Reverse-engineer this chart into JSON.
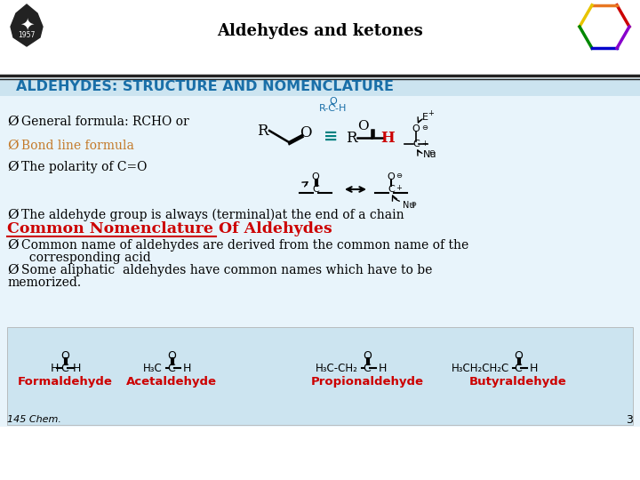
{
  "title": "Aldehydes and ketones",
  "slide_bg": "#ffffff",
  "header_title": "ALDEHYDES: STRUCTURE AND NOMENCLATURE",
  "header_color": "#1a6fa8",
  "header_bg": "#cce4f0",
  "content_bg": "#e8f4fb",
  "bullet1": "General formula: RCHO or",
  "bullet2_color": "#c47a2a",
  "bullet2": "Bond line formula",
  "bullet3": "The polarity of C=O",
  "bullet4": "The aldehyde group is always (terminal)at the end of a chain",
  "common_title": "Common Nomenclature Of Aldehydes",
  "common_title_color": "#cc0000",
  "common_b1a": "Common name of aldehydes are derived from the common name of the",
  "common_b1b": "  corresponding acid",
  "common_b2a": "Some aliphatic  aldehydes have common names which have to be",
  "common_b2b": "memorized.",
  "bottom_compounds": [
    "Formaldehyde",
    "Acetaldehyde",
    "Propionaldehyde",
    "Butyraldehyde"
  ],
  "bottom_compound_color": "#cc0000",
  "footer": "145 Chem.",
  "page_num": "3",
  "line_color": "#333333",
  "bottom_bg": "#cce4f0",
  "teal": "#008080",
  "blue_formula": "#1a6fa8",
  "red_H": "#cc0000"
}
